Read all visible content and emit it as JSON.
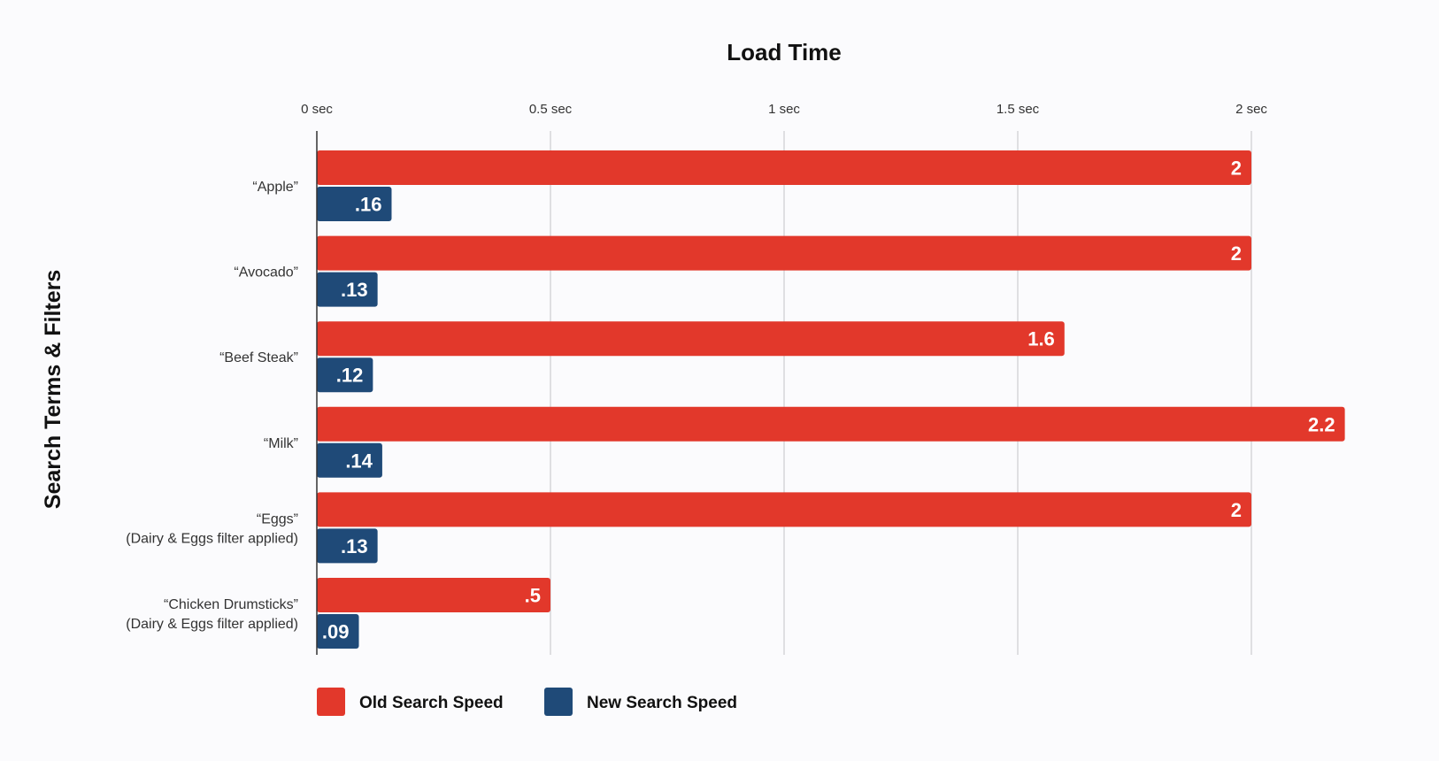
{
  "chart_data": {
    "type": "bar",
    "orientation": "horizontal",
    "title": "Load Time",
    "xlabel": "",
    "ylabel": "Search Terms & Filters",
    "xlim": [
      0,
      2.2
    ],
    "x_ticks": [
      {
        "value": 0,
        "label": "0 sec"
      },
      {
        "value": 0.5,
        "label": "0.5 sec"
      },
      {
        "value": 1,
        "label": "1 sec"
      },
      {
        "value": 1.5,
        "label": "1.5 sec"
      },
      {
        "value": 2,
        "label": "2 sec"
      }
    ],
    "grid": true,
    "x_axis_position": "top",
    "legend_position": "bottom-left",
    "categories": [
      [
        "“Apple”"
      ],
      [
        "“Avocado”"
      ],
      [
        "“Beef Steak”"
      ],
      [
        "“Milk”"
      ],
      [
        "“Eggs”",
        "(Dairy & Eggs filter applied)"
      ],
      [
        "“Chicken Drumsticks”",
        "(Dairy & Eggs filter applied)"
      ]
    ],
    "series": [
      {
        "name": "Old Search Speed",
        "color": "#e2382b",
        "values": [
          2,
          2,
          1.6,
          2.2,
          2,
          0.5
        ],
        "labels": [
          "2",
          "2",
          "1.6",
          "2.2",
          "2",
          ".5"
        ]
      },
      {
        "name": "New Search Speed",
        "color": "#1f4a78",
        "values": [
          0.16,
          0.13,
          0.12,
          0.14,
          0.13,
          0.09
        ],
        "labels": [
          ".16",
          ".13",
          ".12",
          ".14",
          ".13",
          ".09"
        ]
      }
    ]
  }
}
